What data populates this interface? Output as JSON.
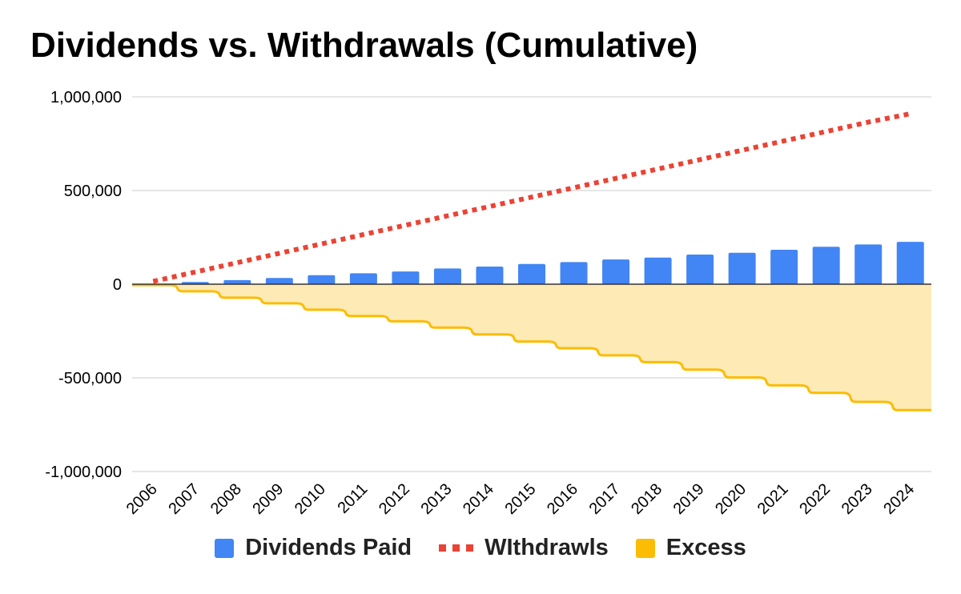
{
  "chart_data": {
    "type": "bar",
    "title": "Dividends vs. Withdrawals (Cumulative)",
    "xlabel": "",
    "ylabel": "",
    "categories": [
      "2006",
      "2007",
      "2008",
      "2009",
      "2010",
      "2011",
      "2012",
      "2013",
      "2014",
      "2015",
      "2016",
      "2017",
      "2018",
      "2019",
      "2020",
      "2021",
      "2022",
      "2023",
      "2024"
    ],
    "ylim": [
      -1000000,
      1000000
    ],
    "y_ticks": [
      1000000,
      500000,
      0,
      -500000,
      -1000000
    ],
    "y_tick_labels": [
      "1,000,000",
      "500,000",
      "0",
      "-500,000",
      "-1,000,000"
    ],
    "grid": true,
    "legend_position": "bottom",
    "series": [
      {
        "name": "Dividends Paid",
        "type": "bar",
        "color": "#4285f4",
        "values": [
          0,
          12000,
          22000,
          33000,
          48000,
          58000,
          68000,
          84000,
          94000,
          108000,
          118000,
          132000,
          142000,
          158000,
          168000,
          184000,
          200000,
          212000,
          226000
        ]
      },
      {
        "name": "WIthdrawls",
        "type": "line",
        "style": "dotted",
        "color": "#ea4335",
        "values": [
          15000,
          65000,
          115000,
          165000,
          215000,
          265000,
          315000,
          365000,
          415000,
          465000,
          515000,
          565000,
          615000,
          665000,
          715000,
          765000,
          815000,
          865000,
          910000
        ]
      },
      {
        "name": "Excess",
        "type": "stepped-area",
        "color": "#fbbc04",
        "fill": "#fdeab4",
        "values": [
          -5000,
          -38000,
          -72000,
          -102000,
          -136000,
          -170000,
          -198000,
          -232000,
          -268000,
          -306000,
          -342000,
          -380000,
          -416000,
          -456000,
          -498000,
          -540000,
          -580000,
          -628000,
          -672000
        ]
      }
    ]
  }
}
